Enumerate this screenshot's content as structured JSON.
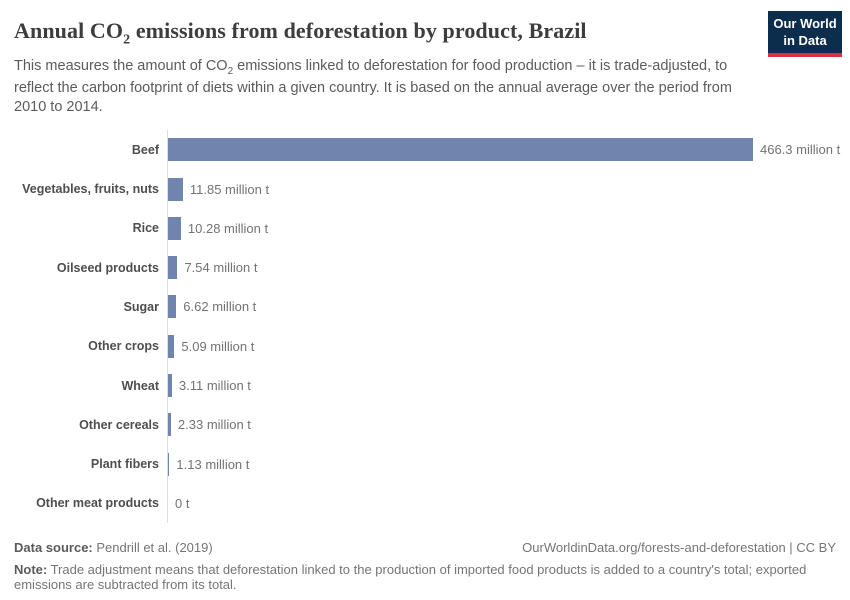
{
  "header": {
    "title_prefix": "Annual CO",
    "title_sub": "2",
    "title_suffix": " emissions from deforestation by product, Brazil",
    "subtitle_prefix": "This measures the amount of CO",
    "subtitle_sub": "2",
    "subtitle_suffix": " emissions linked to deforestation for food production – it is trade-adjusted, to reflect the carbon footprint of diets within a given country. It is based on the annual average over the period from 2010 to 2014.",
    "logo": {
      "line1": "Our World",
      "line2": "in Data",
      "bg_color": "#0d2d4d",
      "accent_color": "#d4323e"
    }
  },
  "chart_data": {
    "type": "bar",
    "orientation": "horizontal",
    "title": "Annual CO2 emissions from deforestation by product, Brazil",
    "unit": "million t",
    "xlim": [
      0,
      466.3
    ],
    "grid": false,
    "bar_color": "#6f85ae",
    "axis_color": "#dcdcdc",
    "categories": [
      "Beef",
      "Vegetables, fruits, nuts",
      "Rice",
      "Oilseed products",
      "Sugar",
      "Other crops",
      "Wheat",
      "Other cereals",
      "Plant fibers",
      "Other meat products"
    ],
    "values": [
      466.3,
      11.85,
      10.28,
      7.54,
      6.62,
      5.09,
      3.11,
      2.33,
      1.13,
      0
    ],
    "value_labels": [
      "466.3 million t",
      "11.85 million t",
      "10.28 million t",
      "7.54 million t",
      "6.62 million t",
      "5.09 million t",
      "3.11 million t",
      "2.33 million t",
      "1.13 million t",
      "0 t"
    ]
  },
  "footer": {
    "source_label": "Data source:",
    "source_value": " Pendrill et al. (2019)",
    "link": "OurWorldinData.org/forests-and-deforestation | CC BY",
    "note_label": "Note:",
    "note_value": " Trade adjustment means that deforestation linked to the production of imported food products is added to a country's total; exported emissions are subtracted from its total."
  }
}
